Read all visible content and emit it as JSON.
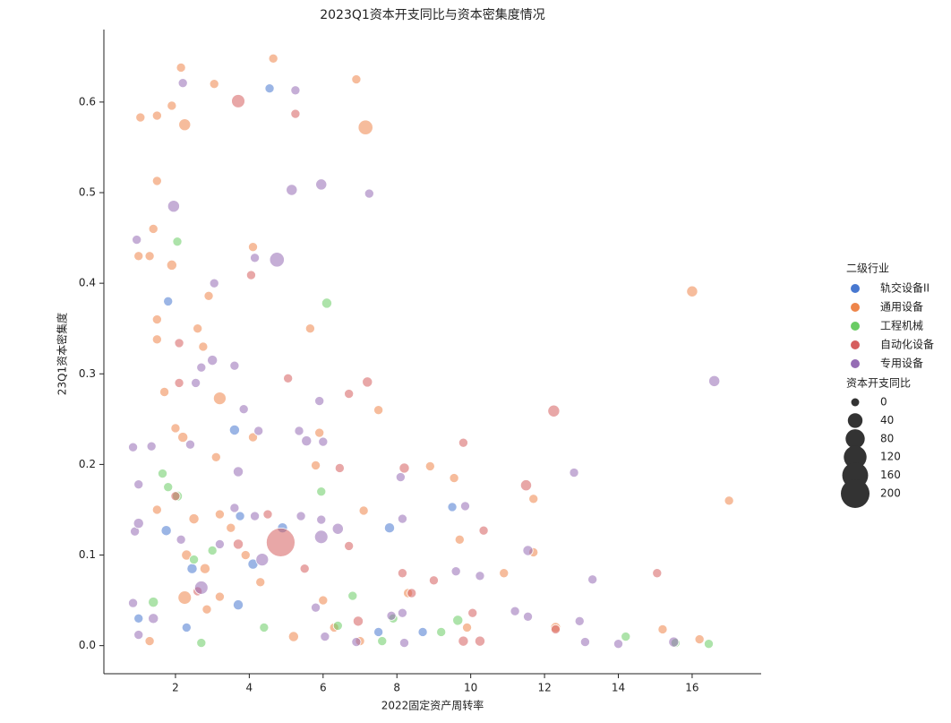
{
  "chart_data": {
    "type": "scatter",
    "title": "2023Q1资本开支同比与资本密集度情况",
    "x_label": "2022固定资产周转率",
    "y_label": "23Q1资本密集度",
    "xlim": [
      0.06,
      17.87
    ],
    "ylim": [
      -0.031,
      0.68
    ],
    "xticks": [
      2,
      4,
      6,
      8,
      10,
      12,
      14,
      16
    ],
    "yticks": [
      {
        "value": 0,
        "label": "0.0"
      },
      0.1,
      0.2,
      0.3,
      0.4,
      0.5,
      0.6
    ],
    "legend_title": "二级行业",
    "size_legend": {
      "title": "资本开支同比",
      "values": [
        0,
        40,
        80,
        120,
        160,
        200
      ]
    },
    "series": [
      {
        "name": "轨交设备II",
        "color": "#4878d0",
        "x": [
          4.55,
          1.8,
          3.6,
          3.75,
          4.9,
          7.8,
          9.5,
          1.75,
          2.45,
          4.1,
          1.0,
          2.3,
          7.5,
          8.7,
          3.7
        ],
        "y": [
          0.615,
          0.38,
          0.238,
          0.143,
          0.13,
          0.13,
          0.153,
          0.127,
          0.085,
          0.09,
          0.03,
          0.02,
          0.015,
          0.015,
          0.045
        ],
        "sizes": [
          5,
          5,
          10,
          5,
          10,
          10,
          5,
          10,
          10,
          10,
          5,
          5,
          5,
          5,
          10
        ]
      },
      {
        "name": "通用设备",
        "color": "#ee854a",
        "x": [
          2.15,
          4.65,
          3.05,
          6.9,
          1.05,
          1.5,
          1.9,
          2.25,
          7.15,
          1.5,
          1.4,
          1.0,
          1.3,
          1.9,
          4.1,
          2.9,
          16.0,
          1.5,
          1.5,
          2.6,
          5.65,
          2.75,
          3.2,
          1.7,
          7.5,
          2.0,
          2.2,
          4.1,
          5.9,
          3.1,
          5.8,
          8.9,
          9.55,
          11.7,
          17.0,
          7.1,
          2.5,
          3.2,
          9.7,
          11.7,
          2.3,
          3.9,
          10.9,
          2.25,
          3.2,
          12.3,
          15.2,
          16.2,
          1.3,
          5.2,
          8.3,
          9.9,
          6.0,
          2.85,
          7.0,
          4.3,
          1.5,
          3.5,
          2.8,
          6.3
        ],
        "y": [
          0.638,
          0.648,
          0.62,
          0.625,
          0.583,
          0.585,
          0.596,
          0.575,
          0.572,
          0.513,
          0.46,
          0.43,
          0.43,
          0.42,
          0.44,
          0.386,
          0.391,
          0.36,
          0.338,
          0.35,
          0.35,
          0.33,
          0.273,
          0.28,
          0.26,
          0.24,
          0.23,
          0.23,
          0.235,
          0.208,
          0.199,
          0.198,
          0.185,
          0.162,
          0.16,
          0.149,
          0.14,
          0.145,
          0.117,
          0.103,
          0.1,
          0.1,
          0.08,
          0.053,
          0.054,
          0.02,
          0.018,
          0.007,
          0.005,
          0.01,
          0.058,
          0.02,
          0.05,
          0.04,
          0.005,
          0.07,
          0.15,
          0.13,
          0.085,
          0.02
        ],
        "sizes": [
          5,
          5,
          5,
          5,
          5,
          5,
          5,
          20,
          40,
          5,
          5,
          5,
          5,
          10,
          5,
          5,
          15,
          5,
          5,
          5,
          5,
          5,
          25,
          5,
          5,
          5,
          10,
          5,
          5,
          5,
          5,
          5,
          5,
          5,
          5,
          5,
          10,
          5,
          5,
          5,
          10,
          5,
          5,
          30,
          5,
          10,
          5,
          5,
          5,
          10,
          5,
          5,
          5,
          5,
          5,
          5,
          5,
          5,
          10,
          5
        ]
      },
      {
        "name": "工程机械",
        "color": "#6acc64",
        "x": [
          2.05,
          6.1,
          1.65,
          2.05,
          5.95,
          1.8,
          2.5,
          3.0,
          1.4,
          6.8,
          9.65,
          9.2,
          14.2,
          15.55,
          16.45,
          7.9,
          4.4,
          2.7,
          7.6,
          6.4
        ],
        "y": [
          0.446,
          0.378,
          0.19,
          0.165,
          0.17,
          0.175,
          0.095,
          0.105,
          0.048,
          0.055,
          0.028,
          0.015,
          0.01,
          0.003,
          0.002,
          0.03,
          0.02,
          0.003,
          0.005,
          0.022
        ],
        "sizes": [
          5,
          10,
          5,
          10,
          5,
          5,
          5,
          5,
          10,
          5,
          10,
          5,
          5,
          5,
          5,
          5,
          5,
          5,
          5,
          5
        ]
      },
      {
        "name": "自动化设备",
        "color": "#d65f5f",
        "x": [
          3.7,
          5.25,
          4.05,
          5.05,
          7.2,
          6.7,
          12.25,
          9.8,
          6.45,
          8.2,
          11.5,
          4.85,
          6.7,
          2.0,
          2.1,
          2.1,
          10.35,
          15.05,
          8.15,
          9.0,
          10.05,
          12.3,
          5.5,
          8.4,
          10.25,
          9.8,
          6.95,
          3.7,
          4.5,
          2.6
        ],
        "y": [
          0.601,
          0.587,
          0.409,
          0.295,
          0.291,
          0.278,
          0.259,
          0.224,
          0.196,
          0.196,
          0.177,
          0.114,
          0.11,
          0.165,
          0.29,
          0.334,
          0.127,
          0.08,
          0.08,
          0.072,
          0.036,
          0.018,
          0.085,
          0.058,
          0.005,
          0.005,
          0.027,
          0.112,
          0.145,
          0.06
        ],
        "sizes": [
          30,
          5,
          5,
          5,
          10,
          5,
          20,
          5,
          5,
          10,
          15,
          200,
          5,
          5,
          5,
          5,
          5,
          5,
          5,
          5,
          5,
          5,
          5,
          5,
          10,
          10,
          10,
          10,
          5,
          5
        ]
      },
      {
        "name": "专用设备",
        "color": "#956cb4",
        "x": [
          2.2,
          5.25,
          5.15,
          5.95,
          7.25,
          1.95,
          0.95,
          4.75,
          4.15,
          3.05,
          3.0,
          2.7,
          3.6,
          2.55,
          16.6,
          5.9,
          3.85,
          4.25,
          5.35,
          5.55,
          6.0,
          0.85,
          1.35,
          2.4,
          12.8,
          3.7,
          8.1,
          1.0,
          9.85,
          3.6,
          4.15,
          5.4,
          5.95,
          8.15,
          6.4,
          5.95,
          4.35,
          2.7,
          11.55,
          13.3,
          9.6,
          10.25,
          11.2,
          11.55,
          12.95,
          13.1,
          14.0,
          15.5,
          8.15,
          7.85,
          6.9,
          1.0,
          1.4,
          0.85,
          0.9,
          1.0,
          2.15,
          3.2,
          6.05,
          8.2,
          5.8
        ],
        "y": [
          0.621,
          0.613,
          0.503,
          0.509,
          0.499,
          0.485,
          0.448,
          0.426,
          0.428,
          0.4,
          0.315,
          0.307,
          0.309,
          0.29,
          0.292,
          0.27,
          0.261,
          0.237,
          0.237,
          0.226,
          0.225,
          0.219,
          0.22,
          0.222,
          0.191,
          0.192,
          0.186,
          0.178,
          0.154,
          0.152,
          0.143,
          0.143,
          0.139,
          0.14,
          0.129,
          0.12,
          0.095,
          0.064,
          0.105,
          0.073,
          0.082,
          0.077,
          0.038,
          0.032,
          0.027,
          0.004,
          0.002,
          0.004,
          0.036,
          0.033,
          0.004,
          0.012,
          0.03,
          0.047,
          0.126,
          0.135,
          0.117,
          0.112,
          0.01,
          0.003,
          0.042
        ],
        "sizes": [
          5,
          5,
          15,
          15,
          5,
          20,
          5,
          40,
          5,
          5,
          10,
          5,
          5,
          5,
          15,
          5,
          5,
          5,
          5,
          10,
          5,
          5,
          5,
          5,
          5,
          10,
          5,
          5,
          5,
          5,
          5,
          5,
          5,
          5,
          15,
          30,
          25,
          30,
          10,
          5,
          5,
          5,
          5,
          5,
          5,
          5,
          5,
          10,
          5,
          5,
          5,
          5,
          10,
          5,
          5,
          10,
          5,
          5,
          5,
          5,
          5
        ]
      }
    ]
  }
}
